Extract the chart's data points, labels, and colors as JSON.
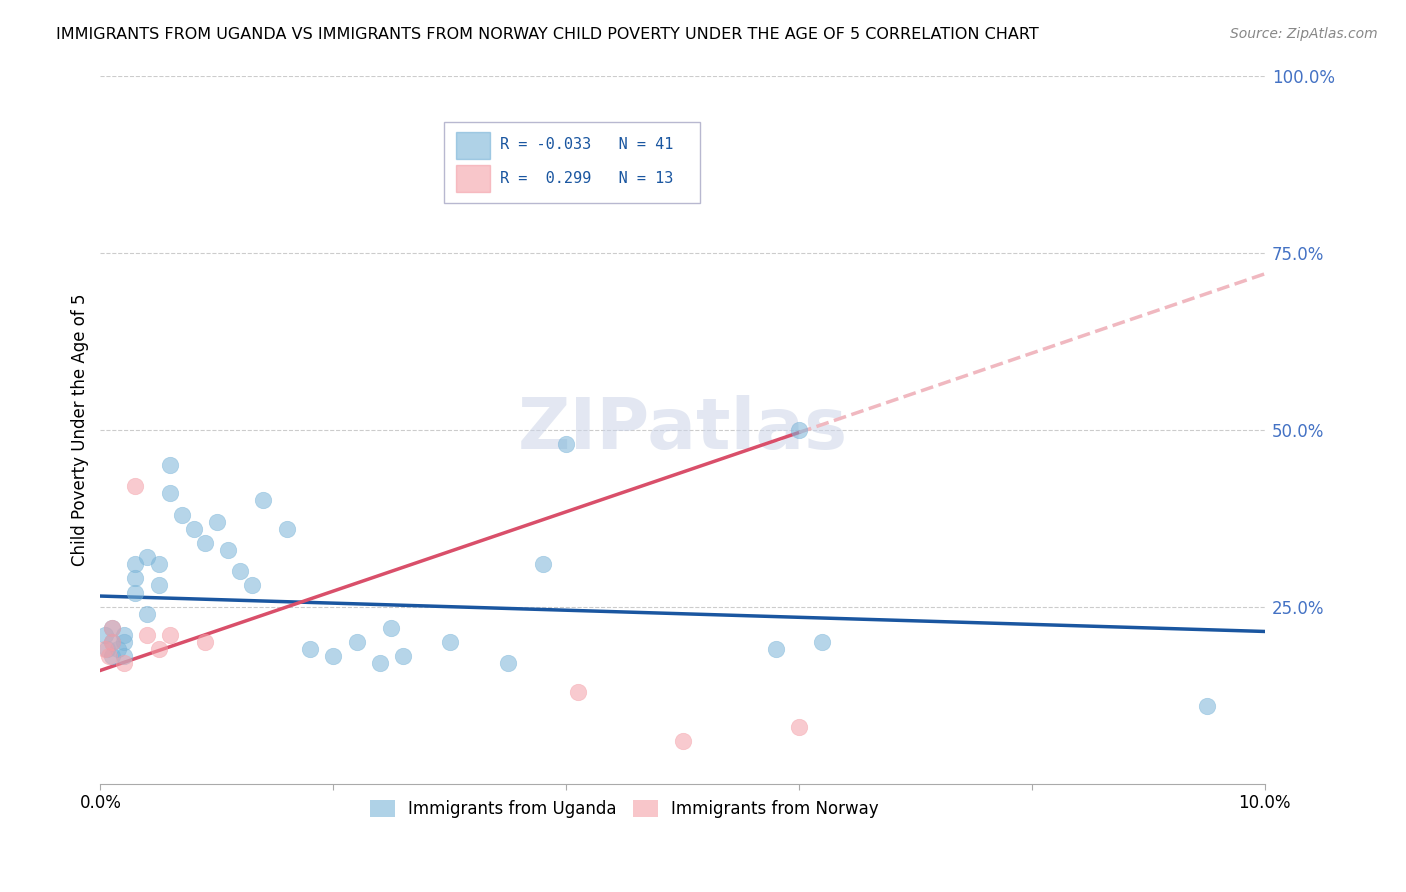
{
  "title": "IMMIGRANTS FROM UGANDA VS IMMIGRANTS FROM NORWAY CHILD POVERTY UNDER THE AGE OF 5 CORRELATION CHART",
  "source": "Source: ZipAtlas.com",
  "ylabel": "Child Poverty Under the Age of 5",
  "xlim": [
    0.0,
    0.1
  ],
  "ylim": [
    0.0,
    1.0
  ],
  "xticks": [
    0.0,
    0.02,
    0.04,
    0.06,
    0.08,
    0.1
  ],
  "xticklabels": [
    "0.0%",
    "",
    "",
    "",
    "",
    "10.0%"
  ],
  "yticks_right": [
    0.0,
    0.25,
    0.5,
    0.75,
    1.0
  ],
  "yticklabels_right": [
    "",
    "25.0%",
    "50.0%",
    "75.0%",
    "100.0%"
  ],
  "watermark": "ZIPatlas",
  "uganda_color": "#7ab4d8",
  "norway_color": "#f4a0a8",
  "uganda_r": -0.033,
  "uganda_n": 41,
  "norway_r": 0.299,
  "norway_n": 13,
  "trendline_uganda_color": "#1a56a0",
  "trendline_norway_solid_color": "#d94f6a",
  "trendline_norway_dashed_color": "#f0b8c0",
  "uganda_x": [
    0.0004,
    0.0006,
    0.001,
    0.001,
    0.001,
    0.0015,
    0.002,
    0.002,
    0.002,
    0.003,
    0.003,
    0.003,
    0.004,
    0.004,
    0.005,
    0.005,
    0.006,
    0.006,
    0.007,
    0.008,
    0.009,
    0.01,
    0.011,
    0.012,
    0.013,
    0.014,
    0.016,
    0.018,
    0.02,
    0.022,
    0.024,
    0.025,
    0.026,
    0.03,
    0.035,
    0.038,
    0.04,
    0.058,
    0.06,
    0.062,
    0.095
  ],
  "uganda_y": [
    0.21,
    0.19,
    0.22,
    0.2,
    0.18,
    0.19,
    0.21,
    0.2,
    0.18,
    0.31,
    0.29,
    0.27,
    0.32,
    0.24,
    0.31,
    0.28,
    0.45,
    0.41,
    0.38,
    0.36,
    0.34,
    0.37,
    0.33,
    0.3,
    0.28,
    0.4,
    0.36,
    0.19,
    0.18,
    0.2,
    0.17,
    0.22,
    0.18,
    0.2,
    0.17,
    0.31,
    0.48,
    0.19,
    0.5,
    0.2,
    0.11
  ],
  "norway_x": [
    0.0004,
    0.0007,
    0.001,
    0.001,
    0.002,
    0.003,
    0.004,
    0.005,
    0.006,
    0.009,
    0.041,
    0.05,
    0.06
  ],
  "norway_y": [
    0.19,
    0.18,
    0.22,
    0.2,
    0.17,
    0.42,
    0.21,
    0.19,
    0.21,
    0.2,
    0.13,
    0.06,
    0.08
  ]
}
